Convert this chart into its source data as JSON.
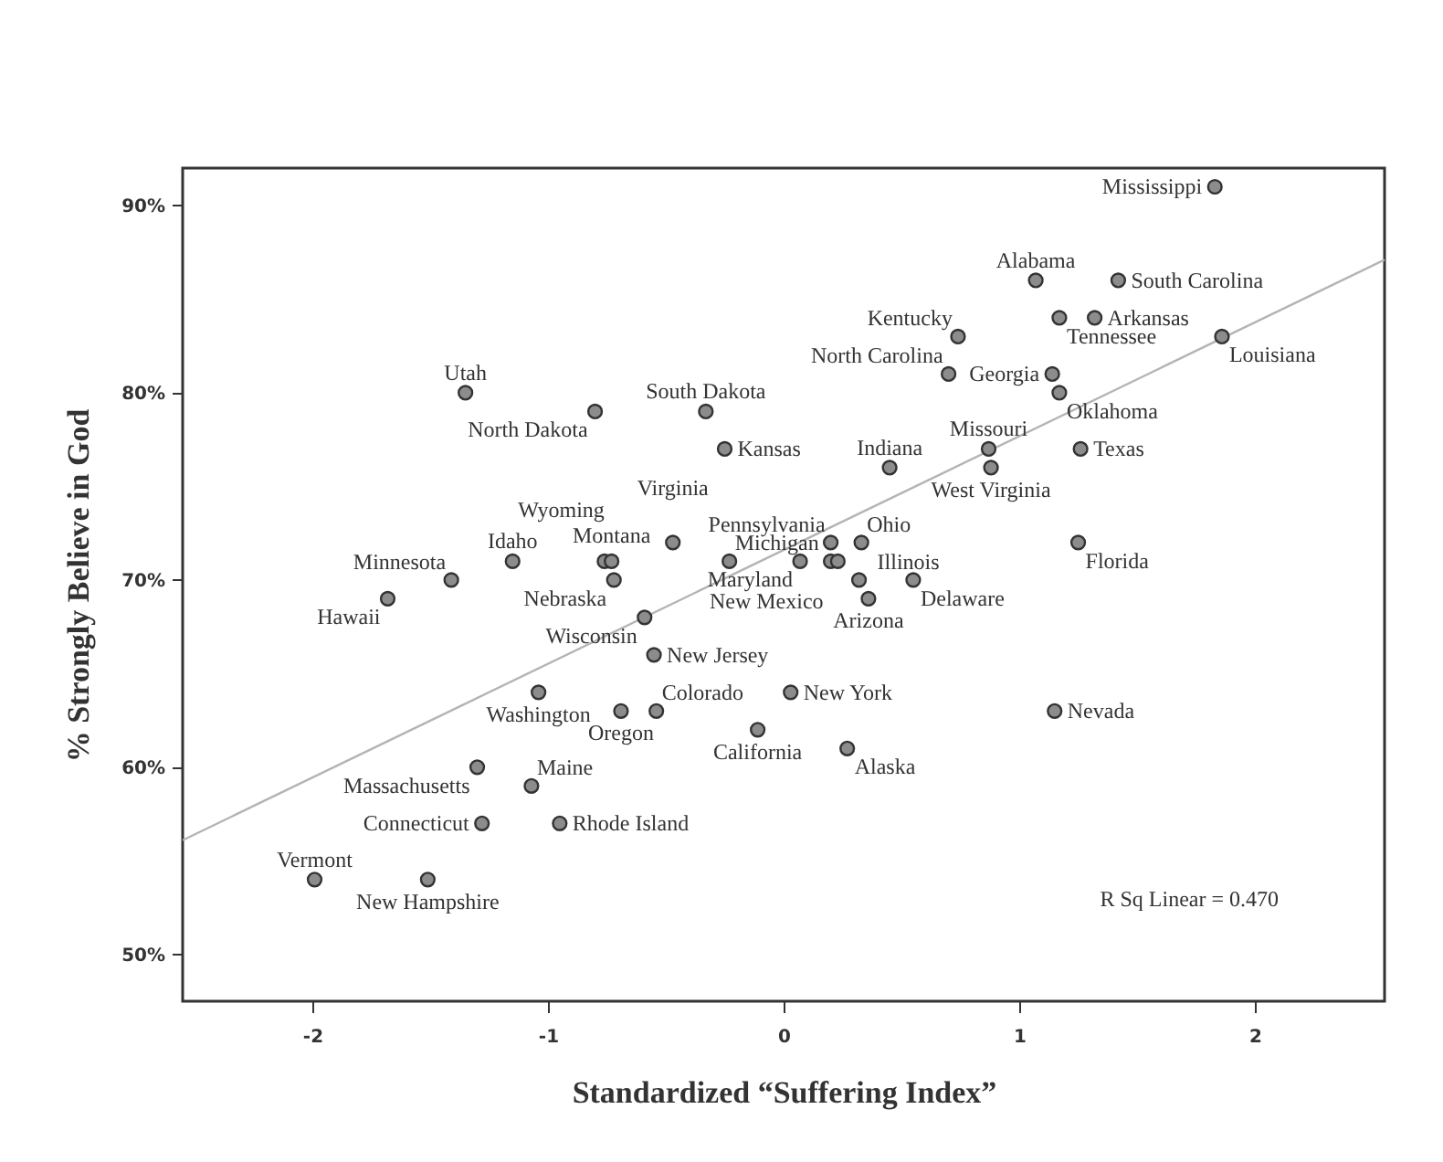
{
  "chart_data": {
    "type": "scatter",
    "xlabel": "Standardized “Suffering Index”",
    "ylabel": "% Strongly Believe in God",
    "xlim": [
      -2.55,
      2.55
    ],
    "ylim": [
      47.5,
      92
    ],
    "xticks": [
      -2,
      -1,
      0,
      1,
      2
    ],
    "yticks": [
      {
        "value": 50,
        "label": "50%"
      },
      {
        "value": 60,
        "label": "60%"
      },
      {
        "value": 70,
        "label": "70%"
      },
      {
        "value": 80,
        "label": "80%"
      },
      {
        "value": 90,
        "label": "90%"
      }
    ],
    "grid": false,
    "series": [
      {
        "marker": "circle",
        "color": "#8c8c8c",
        "x": [
          -1.35,
          -0.8,
          -0.33,
          -0.25,
          -0.47,
          -0.23,
          -0.76,
          -0.73,
          -1.15,
          -1.41,
          -0.72,
          -1.68,
          -0.59,
          -0.55,
          -1.04,
          -0.69,
          -0.54,
          -0.11,
          -1.3,
          -1.07,
          -1.28,
          -0.95,
          -1.99,
          -1.51,
          1.83,
          1.07,
          1.42,
          0.74,
          1.17,
          1.32,
          1.86,
          0.7,
          1.14,
          1.17,
          0.87,
          1.26,
          0.88,
          0.45,
          1.25,
          0.33,
          0.2,
          0.2,
          0.23,
          0.07,
          0.32,
          0.36,
          0.55,
          0.03,
          1.15,
          0.27
        ],
        "values": [
          80,
          79,
          79,
          77,
          72,
          71,
          71,
          71,
          71,
          70,
          70,
          69,
          68,
          66,
          64,
          63,
          63,
          62,
          60,
          59,
          57,
          57,
          54,
          54,
          91,
          86,
          86,
          83,
          84,
          84,
          83,
          81,
          81,
          80,
          77,
          77,
          76,
          76,
          72,
          72,
          72,
          71,
          71,
          71,
          70,
          69,
          70,
          64,
          63,
          61
        ]
      },
      {
        "type": "line",
        "color": "#b4b4b4",
        "x": [
          -2.55,
          2.55
        ],
        "values": [
          56.1,
          87.1
        ]
      }
    ],
    "annotations": [
      {
        "text": "Utah",
        "x": -1.35,
        "y": 80
      },
      {
        "text": "North Dakota",
        "x": -0.8,
        "y": 79
      },
      {
        "text": "South Dakota",
        "x": -0.33,
        "y": 79
      },
      {
        "text": "Kansas",
        "x": -0.25,
        "y": 77
      },
      {
        "text": "Virginia",
        "x": -0.47,
        "y": 72
      },
      {
        "text": "Michigan",
        "x": -0.23,
        "y": 71
      },
      {
        "text": "Wyoming",
        "x": -0.76,
        "y": 71
      },
      {
        "text": "Montana",
        "x": -0.73,
        "y": 71
      },
      {
        "text": "Idaho",
        "x": -1.15,
        "y": 71
      },
      {
        "text": "Minnesota",
        "x": -1.41,
        "y": 70
      },
      {
        "text": "Nebraska",
        "x": -0.72,
        "y": 70
      },
      {
        "text": "Hawaii",
        "x": -1.68,
        "y": 69
      },
      {
        "text": "Wisconsin",
        "x": -0.59,
        "y": 68
      },
      {
        "text": "New Jersey",
        "x": -0.55,
        "y": 66
      },
      {
        "text": "Washington",
        "x": -1.04,
        "y": 64
      },
      {
        "text": "Oregon",
        "x": -0.69,
        "y": 63
      },
      {
        "text": "Colorado",
        "x": -0.54,
        "y": 63
      },
      {
        "text": "California",
        "x": -0.11,
        "y": 62
      },
      {
        "text": "Massachusetts",
        "x": -1.3,
        "y": 60
      },
      {
        "text": "Maine",
        "x": -1.07,
        "y": 59
      },
      {
        "text": "Connecticut",
        "x": -1.28,
        "y": 57
      },
      {
        "text": "Rhode Island",
        "x": -0.95,
        "y": 57
      },
      {
        "text": "Vermont",
        "x": -1.99,
        "y": 54
      },
      {
        "text": "New Hampshire",
        "x": -1.51,
        "y": 54
      },
      {
        "text": "Mississippi",
        "x": 1.83,
        "y": 91
      },
      {
        "text": "Alabama",
        "x": 1.07,
        "y": 86
      },
      {
        "text": "South Carolina",
        "x": 1.42,
        "y": 86
      },
      {
        "text": "Kentucky",
        "x": 0.74,
        "y": 83
      },
      {
        "text": "Tennessee",
        "x": 1.17,
        "y": 84
      },
      {
        "text": "Arkansas",
        "x": 1.32,
        "y": 84
      },
      {
        "text": "Louisiana",
        "x": 1.86,
        "y": 83
      },
      {
        "text": "North Carolina",
        "x": 0.7,
        "y": 81
      },
      {
        "text": "Georgia",
        "x": 1.14,
        "y": 81
      },
      {
        "text": "Oklahoma",
        "x": 1.17,
        "y": 80
      },
      {
        "text": "Missouri",
        "x": 0.87,
        "y": 77
      },
      {
        "text": "Texas",
        "x": 1.26,
        "y": 77
      },
      {
        "text": "West Virginia",
        "x": 0.88,
        "y": 76
      },
      {
        "text": "Indiana",
        "x": 0.45,
        "y": 76
      },
      {
        "text": "Florida",
        "x": 1.25,
        "y": 72
      },
      {
        "text": "Ohio",
        "x": 0.33,
        "y": 72
      },
      {
        "text": "Pennsylvania",
        "x": 0.2,
        "y": 72
      },
      {
        "text": "New Mexico",
        "x": 0.2,
        "y": 71
      },
      {
        "text": "Maryland",
        "x": 0.07,
        "y": 71
      },
      {
        "text": "Illinois",
        "x": 0.32,
        "y": 70
      },
      {
        "text": "Arizona",
        "x": 0.36,
        "y": 69
      },
      {
        "text": "Delaware",
        "x": 0.55,
        "y": 70
      },
      {
        "text": "New York",
        "x": 0.03,
        "y": 64
      },
      {
        "text": "Nevada",
        "x": 1.15,
        "y": 63
      },
      {
        "text": "Alaska",
        "x": 0.27,
        "y": 61
      },
      "R Sq Linear = 0.470"
    ]
  }
}
